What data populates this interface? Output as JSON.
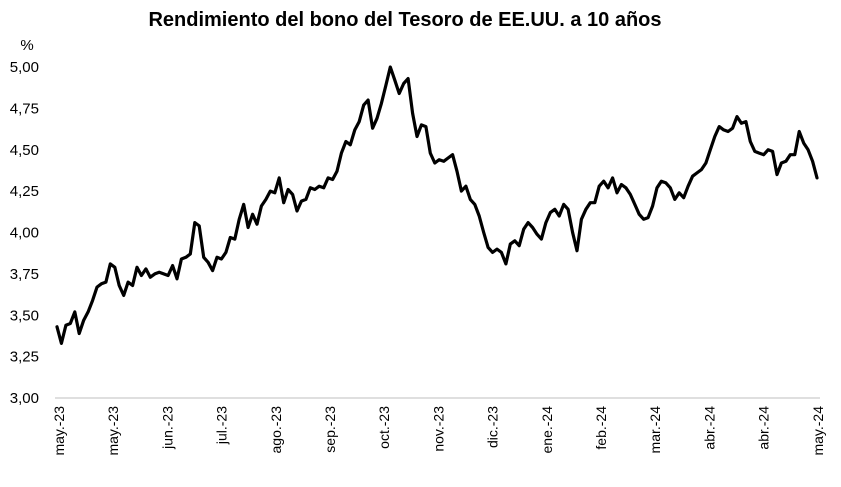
{
  "chart_data": {
    "type": "line",
    "title": "Rendimiento del bono del Tesoro de EE.UU. a 10 años",
    "unit_label": "%",
    "xlabel": "",
    "ylabel": "",
    "ylim": [
      3.0,
      5.0
    ],
    "yticks": [
      "3,00",
      "3,25",
      "3,50",
      "3,75",
      "4,00",
      "4,25",
      "4,50",
      "4,75",
      "5,00"
    ],
    "xticks": [
      "may.-23",
      "may.-23",
      "jun.-23",
      "jul.-23",
      "ago.-23",
      "sep.-23",
      "oct.-23",
      "nov.-23",
      "dic.-23",
      "ene.-24",
      "feb.-24",
      "mar.-24",
      "abr.-24",
      "abr.-24",
      "may.-24"
    ],
    "grid": false,
    "legend": "none",
    "line_color": "#000000",
    "series": [
      {
        "values": [
          3.43,
          3.33,
          3.44,
          3.45,
          3.52,
          3.39,
          3.47,
          3.52,
          3.59,
          3.67,
          3.69,
          3.7,
          3.81,
          3.79,
          3.68,
          3.62,
          3.7,
          3.68,
          3.79,
          3.74,
          3.78,
          3.73,
          3.75,
          3.76,
          3.75,
          3.74,
          3.8,
          3.72,
          3.84,
          3.85,
          3.87,
          4.06,
          4.04,
          3.85,
          3.82,
          3.77,
          3.85,
          3.84,
          3.88,
          3.97,
          3.96,
          4.08,
          4.17,
          4.03,
          4.11,
          4.05,
          4.16,
          4.2,
          4.25,
          4.24,
          4.33,
          4.18,
          4.26,
          4.23,
          4.13,
          4.19,
          4.2,
          4.27,
          4.26,
          4.28,
          4.27,
          4.33,
          4.32,
          4.37,
          4.48,
          4.55,
          4.53,
          4.62,
          4.67,
          4.77,
          4.8,
          4.63,
          4.69,
          4.78,
          4.89,
          5.0,
          4.92,
          4.84,
          4.9,
          4.93,
          4.72,
          4.58,
          4.65,
          4.64,
          4.48,
          4.42,
          4.44,
          4.43,
          4.45,
          4.47,
          4.37,
          4.25,
          4.28,
          4.2,
          4.17,
          4.1,
          4.0,
          3.91,
          3.88,
          3.9,
          3.88,
          3.81,
          3.93,
          3.95,
          3.92,
          4.02,
          4.06,
          4.03,
          3.99,
          3.96,
          4.06,
          4.12,
          4.14,
          4.1,
          4.17,
          4.14,
          4.0,
          3.89,
          4.08,
          4.14,
          4.18,
          4.18,
          4.28,
          4.31,
          4.27,
          4.33,
          4.24,
          4.29,
          4.27,
          4.23,
          4.17,
          4.11,
          4.08,
          4.09,
          4.16,
          4.27,
          4.31,
          4.3,
          4.27,
          4.2,
          4.24,
          4.21,
          4.28,
          4.34,
          4.36,
          4.38,
          4.42,
          4.5,
          4.58,
          4.64,
          4.62,
          4.61,
          4.63,
          4.7,
          4.66,
          4.67,
          4.55,
          4.49,
          4.48,
          4.47,
          4.5,
          4.49,
          4.35,
          4.42,
          4.43,
          4.47,
          4.47,
          4.61,
          4.54,
          4.5,
          4.43,
          4.33
        ]
      }
    ]
  }
}
